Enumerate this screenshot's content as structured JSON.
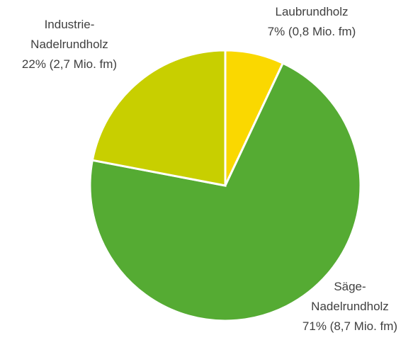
{
  "chart_data": {
    "type": "pie",
    "categories": [
      "Laubrundholz",
      "Säge-Nadelrundholz",
      "Industrie-Nadelrundholz"
    ],
    "values": [
      7,
      71,
      22
    ],
    "value_labels": [
      "7% (0,8 Mio. fm)",
      "71% (8,7 Mio. fm)",
      "22% (2,7 Mio. fm)"
    ],
    "colors": [
      "#fad800",
      "#55ab33",
      "#c8cf00"
    ]
  }
}
